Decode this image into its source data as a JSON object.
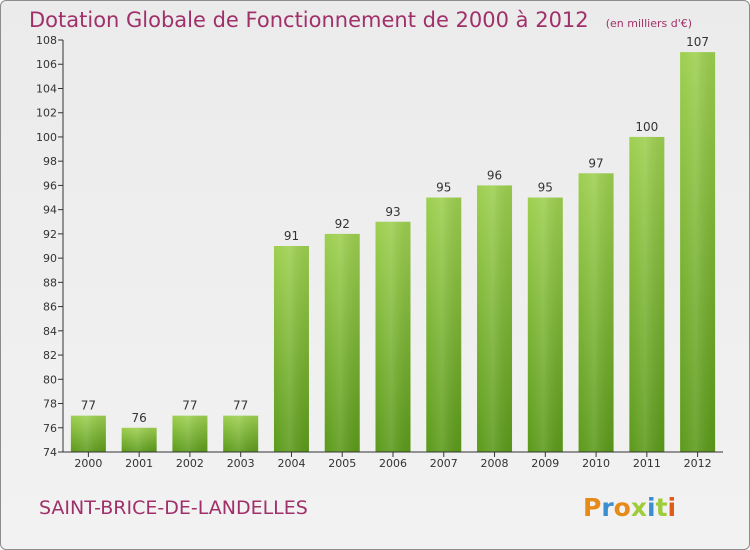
{
  "title": "Dotation Globale de Fonctionnement de 2000 à 2012",
  "unit_note": "(en milliers d'€)",
  "commune": "SAINT-BRICE-DE-LANDELLES",
  "brand": {
    "letters": [
      "P",
      "r",
      "o",
      "x",
      "i",
      "t",
      "i"
    ],
    "colors": [
      "#e88a1a",
      "#3a8fd0",
      "#e88a1a",
      "#9fcc3a",
      "#3a8fd0",
      "#9fcc3a",
      "#e05a1a"
    ]
  },
  "colors": {
    "title": "#a0306a",
    "bar_light": "#9dcf4f",
    "bar_dark": "#5b9a1a",
    "axis": "#333333",
    "grid": "#d0d0d0"
  },
  "chart_data": {
    "type": "bar",
    "categories": [
      "2000",
      "2001",
      "2002",
      "2003",
      "2004",
      "2005",
      "2006",
      "2007",
      "2008",
      "2009",
      "2010",
      "2011",
      "2012"
    ],
    "values": [
      77,
      76,
      77,
      77,
      91,
      92,
      93,
      95,
      96,
      95,
      97,
      100,
      107
    ],
    "ylim": [
      74,
      108
    ],
    "yticks": [
      74,
      76,
      78,
      80,
      82,
      84,
      86,
      88,
      90,
      92,
      94,
      96,
      98,
      100,
      102,
      104,
      106,
      108
    ],
    "data_labels": true,
    "grid": false
  }
}
